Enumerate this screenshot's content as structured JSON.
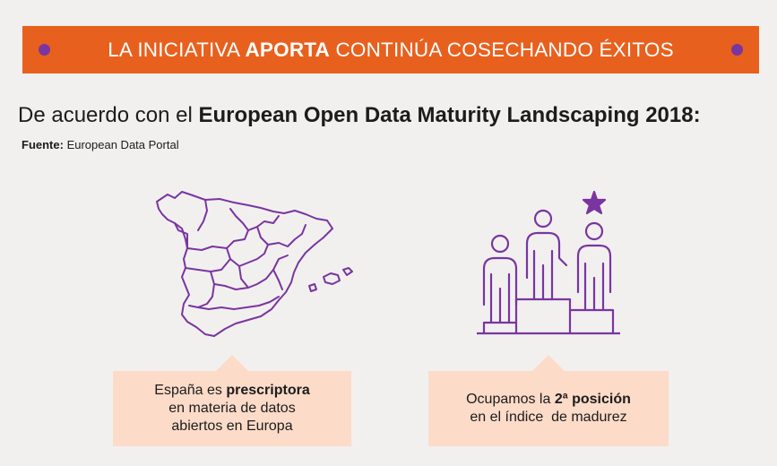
{
  "banner": {
    "title_pre": "LA INICIATIVA ",
    "title_bold": "APORTA",
    "title_post": " CONTINÚA COSECHANDO ÉXITOS"
  },
  "headline": {
    "pre": "De acuerdo con el ",
    "bold": "European Open Data Maturity Landscaping 2018:"
  },
  "source": {
    "label": "Fuente:",
    "value": " European Data Portal"
  },
  "icons": {
    "map": "spain-map-icon",
    "podium": "podium-icon",
    "star": "star-icon"
  },
  "callouts": [
    {
      "line1_pre": "España es ",
      "line1_bold": "prescriptora",
      "line2": "en materia de datos",
      "line3": "abiertos en Europa"
    },
    {
      "line1_pre": "Ocupamos la ",
      "line1_bold": "2ª posición",
      "line2": "en el índice  de madurez"
    }
  ],
  "colors": {
    "banner": "#e8601d",
    "accent_purple": "#7a35a0",
    "callout_bg": "#fcdbc8",
    "background": "#f1f0ef"
  }
}
